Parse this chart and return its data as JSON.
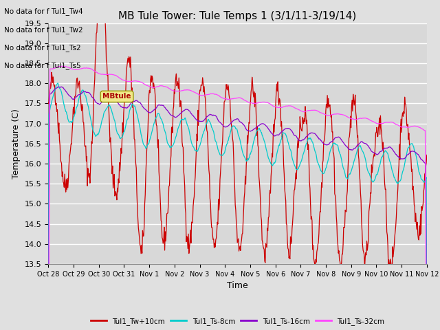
{
  "title": "MB Tule Tower: Tule Temps 1 (3/1/11-3/19/14)",
  "xlabel": "Time",
  "ylabel": "Temperature (C)",
  "ylim": [
    13.5,
    19.5
  ],
  "yticks": [
    13.5,
    14.0,
    14.5,
    15.0,
    15.5,
    16.0,
    16.5,
    17.0,
    17.5,
    18.0,
    18.5,
    19.0,
    19.5
  ],
  "xtick_labels": [
    "Oct 28",
    "Oct 29",
    "Oct 30",
    "Oct 31",
    "Nov 1",
    "Nov 2",
    "Nov 3",
    "Nov 4",
    "Nov 5",
    "Nov 6",
    "Nov 7",
    "Nov 8",
    "Nov 9",
    "Nov 10",
    "Nov 11",
    "Nov 12"
  ],
  "colors": {
    "Tw": "#cc0000",
    "Ts8": "#00cccc",
    "Ts16": "#8800cc",
    "Ts32": "#ff44ff"
  },
  "legend_labels": [
    "Tul1_Tw+10cm",
    "Tul1_Ts-8cm",
    "Tul1_Ts-16cm",
    "Tul1_Ts-32cm"
  ],
  "no_data_texts": [
    "No data for f Tul1_Tw4",
    "No data for f Tul1_Tw2",
    "No data for f Tul1_Ts2",
    "No data for f Tul1_Ts5"
  ],
  "background_color": "#e0e0e0",
  "plot_bg_color": "#d8d8d8",
  "grid_color": "#ffffff",
  "title_fontsize": 11,
  "axis_fontsize": 9,
  "tick_fontsize": 8
}
